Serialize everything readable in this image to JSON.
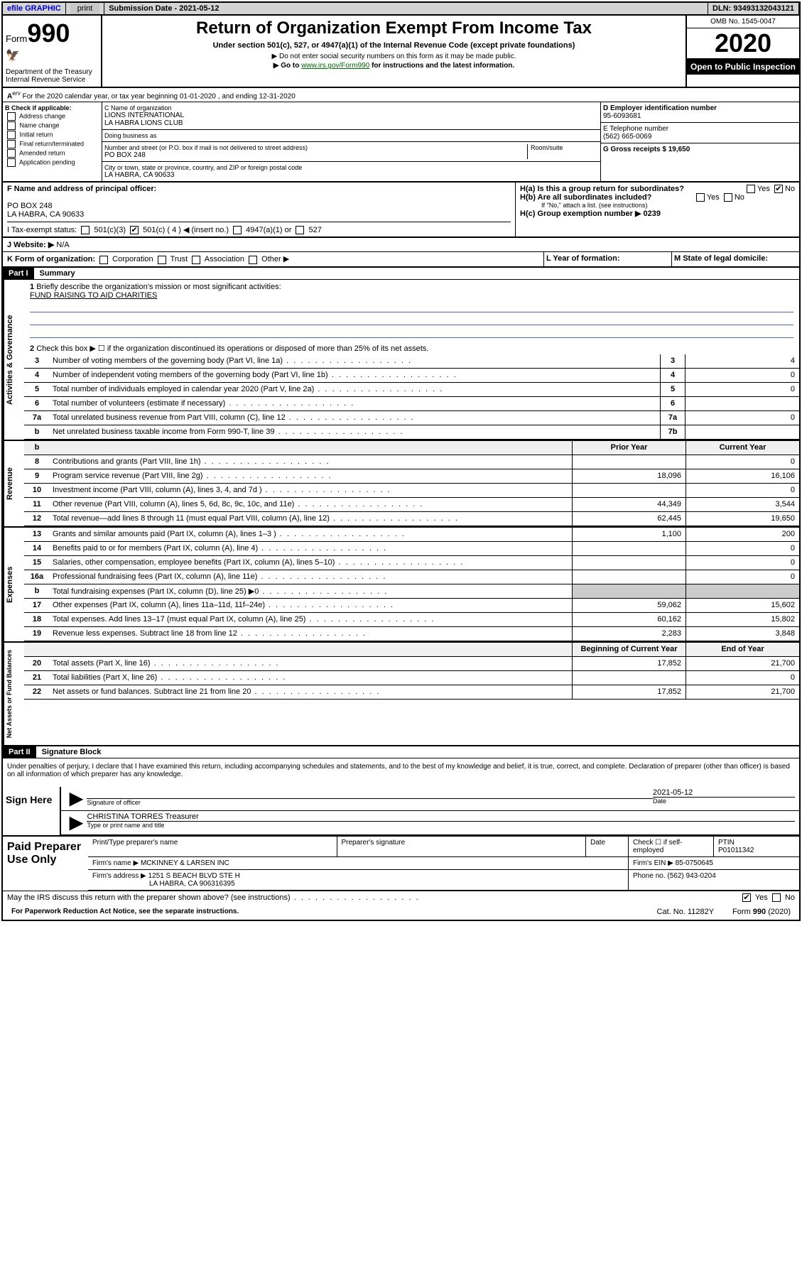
{
  "topbar": {
    "efile": "efile GRAPHIC",
    "print": "print",
    "submission": "Submission Date - 2021-05-12",
    "dln": "DLN: 93493132043121"
  },
  "header": {
    "form_label": "Form",
    "form_num": "990",
    "dept": "Department of the Treasury Internal Revenue Service",
    "title": "Return of Organization Exempt From Income Tax",
    "subtitle": "Under section 501(c), 527, or 4947(a)(1) of the Internal Revenue Code (except private foundations)",
    "line1": "▶ Do not enter social security numbers on this form as it may be made public.",
    "line2_pre": "▶ Go to ",
    "line2_link": "www.irs.gov/Form990",
    "line2_post": " for instructions and the latest information.",
    "omb": "OMB No. 1545-0047",
    "year": "2020",
    "open_public": "Open to Public Inspection"
  },
  "section_a": {
    "tax_year": "For the 2020 calendar year, or tax year beginning 01-01-2020    , and ending 12-31-2020",
    "b_label": "B Check if applicable:",
    "b_opts": [
      "Address change",
      "Name change",
      "Initial return",
      "Final return/terminated",
      "Amended return",
      "Application pending"
    ],
    "c_name_label": "C Name of organization",
    "c_name": "LIONS INTERNATIONAL\nLA HABRA LIONS CLUB",
    "dba_label": "Doing business as",
    "street_label": "Number and street (or P.O. box if mail is not delivered to street address)",
    "street": "PO BOX 248",
    "room_label": "Room/suite",
    "city_label": "City or town, state or province, country, and ZIP or foreign postal code",
    "city": "LA HABRA, CA  90633",
    "d_label": "D Employer identification number",
    "d_val": "95-6093681",
    "e_label": "E Telephone number",
    "e_val": "(562) 665-0069",
    "g_label": "G Gross receipts $ 19,650"
  },
  "section_f": {
    "f_label": "F  Name and address of principal officer:",
    "f_addr1": "PO BOX 248",
    "f_addr2": "LA HABRA, CA  90633",
    "h_a": "H(a)  Is this a group return for subordinates?",
    "h_b": "H(b)  Are all subordinates included?",
    "h_b_note": "If \"No,\" attach a list. (see instructions)",
    "h_c": "H(c)  Group exemption number ▶   0239",
    "yes": "Yes",
    "no": "No"
  },
  "section_i": {
    "label": "I   Tax-exempt status:",
    "opt1": "501(c)(3)",
    "opt2": "501(c) ( 4 ) ◀ (insert no.)",
    "opt3": "4947(a)(1) or",
    "opt4": "527"
  },
  "section_j": {
    "label": "J   Website: ▶",
    "val": "N/A"
  },
  "section_k": {
    "label": "K Form of organization:",
    "opts": [
      "Corporation",
      "Trust",
      "Association",
      "Other ▶"
    ],
    "l_label": "L Year of formation:",
    "m_label": "M State of legal domicile:"
  },
  "part1": {
    "header": "Part I",
    "title": "Summary",
    "q1": "Briefly describe the organization's mission or most significant activities:",
    "mission": "FUND RAISING TO AID CHARITIES",
    "q2": "Check this box ▶ ☐  if the organization discontinued its operations or disposed of more than 25% of its net assets.",
    "rows_gov": [
      {
        "n": "3",
        "d": "Number of voting members of the governing body (Part VI, line 1a)",
        "box": "3",
        "v": "4"
      },
      {
        "n": "4",
        "d": "Number of independent voting members of the governing body (Part VI, line 1b)",
        "box": "4",
        "v": "0"
      },
      {
        "n": "5",
        "d": "Total number of individuals employed in calendar year 2020 (Part V, line 2a)",
        "box": "5",
        "v": "0"
      },
      {
        "n": "6",
        "d": "Total number of volunteers (estimate if necessary)",
        "box": "6",
        "v": ""
      },
      {
        "n": "7a",
        "d": "Total unrelated business revenue from Part VIII, column (C), line 12",
        "box": "7a",
        "v": "0"
      },
      {
        "n": "b",
        "d": "Net unrelated business taxable income from Form 990-T, line 39",
        "box": "7b",
        "v": ""
      }
    ],
    "col_prior": "Prior Year",
    "col_current": "Current Year",
    "rows_rev": [
      {
        "n": "8",
        "d": "Contributions and grants (Part VIII, line 1h)",
        "p": "",
        "c": "0"
      },
      {
        "n": "9",
        "d": "Program service revenue (Part VIII, line 2g)",
        "p": "18,096",
        "c": "16,106"
      },
      {
        "n": "10",
        "d": "Investment income (Part VIII, column (A), lines 3, 4, and 7d )",
        "p": "",
        "c": "0"
      },
      {
        "n": "11",
        "d": "Other revenue (Part VIII, column (A), lines 5, 6d, 8c, 9c, 10c, and 11e)",
        "p": "44,349",
        "c": "3,544"
      },
      {
        "n": "12",
        "d": "Total revenue—add lines 8 through 11 (must equal Part VIII, column (A), line 12)",
        "p": "62,445",
        "c": "19,650"
      }
    ],
    "rows_exp": [
      {
        "n": "13",
        "d": "Grants and similar amounts paid (Part IX, column (A), lines 1–3 )",
        "p": "1,100",
        "c": "200"
      },
      {
        "n": "14",
        "d": "Benefits paid to or for members (Part IX, column (A), line 4)",
        "p": "",
        "c": "0"
      },
      {
        "n": "15",
        "d": "Salaries, other compensation, employee benefits (Part IX, column (A), lines 5–10)",
        "p": "",
        "c": "0"
      },
      {
        "n": "16a",
        "d": "Professional fundraising fees (Part IX, column (A), line 11e)",
        "p": "",
        "c": "0"
      },
      {
        "n": "b",
        "d": "Total fundraising expenses (Part IX, column (D), line 25) ▶0",
        "p": "—",
        "c": "—"
      },
      {
        "n": "17",
        "d": "Other expenses (Part IX, column (A), lines 11a–11d, 11f–24e)",
        "p": "59,062",
        "c": "15,602"
      },
      {
        "n": "18",
        "d": "Total expenses. Add lines 13–17 (must equal Part IX, column (A), line 25)",
        "p": "60,162",
        "c": "15,802"
      },
      {
        "n": "19",
        "d": "Revenue less expenses. Subtract line 18 from line 12",
        "p": "2,283",
        "c": "3,848"
      }
    ],
    "col_begin": "Beginning of Current Year",
    "col_end": "End of Year",
    "rows_net": [
      {
        "n": "20",
        "d": "Total assets (Part X, line 16)",
        "p": "17,852",
        "c": "21,700"
      },
      {
        "n": "21",
        "d": "Total liabilities (Part X, line 26)",
        "p": "",
        "c": "0"
      },
      {
        "n": "22",
        "d": "Net assets or fund balances. Subtract line 21 from line 20",
        "p": "17,852",
        "c": "21,700"
      }
    ],
    "side_gov": "Activities & Governance",
    "side_rev": "Revenue",
    "side_exp": "Expenses",
    "side_net": "Net Assets or Fund Balances"
  },
  "part2": {
    "header": "Part II",
    "title": "Signature Block",
    "perjury": "Under penalties of perjury, I declare that I have examined this return, including accompanying schedules and statements, and to the best of my knowledge and belief, it is true, correct, and complete. Declaration of preparer (other than officer) is based on all information of which preparer has any knowledge.",
    "sign_here": "Sign Here",
    "sig_officer": "Signature of officer",
    "date": "Date",
    "sig_date_val": "2021-05-12",
    "name_title": "CHRISTINA TORRES  Treasurer",
    "name_title_label": "Type or print name and title",
    "paid_prep": "Paid Preparer Use Only",
    "prep_name_label": "Print/Type preparer's name",
    "prep_sig_label": "Preparer's signature",
    "prep_date_label": "Date",
    "prep_check": "Check ☐ if self-employed",
    "ptin_label": "PTIN",
    "ptin": "P01011342",
    "firm_name_label": "Firm's name    ▶",
    "firm_name": "MCKINNEY & LARSEN INC",
    "firm_ein_label": "Firm's EIN ▶",
    "firm_ein": "85-0750645",
    "firm_addr_label": "Firm's address ▶",
    "firm_addr1": "1251 S BEACH BLVD STE H",
    "firm_addr2": "LA HABRA, CA  906316395",
    "phone_label": "Phone no.",
    "phone": "(562) 943-0204",
    "discuss": "May the IRS discuss this return with the preparer shown above? (see instructions)",
    "yes": "Yes",
    "no": "No"
  },
  "footer": {
    "paperwork": "For Paperwork Reduction Act Notice, see the separate instructions.",
    "cat": "Cat. No. 11282Y",
    "formver": "Form 990 (2020)"
  }
}
